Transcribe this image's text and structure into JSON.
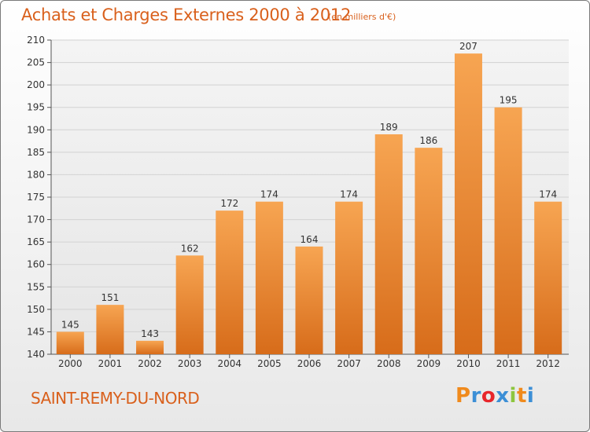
{
  "header": {
    "title": "Achats et Charges Externes 2000 à 2012",
    "subtitle": "(en milliers d'€)"
  },
  "footer": {
    "commune": "SAINT-REMY-DU-NORD",
    "brand": "Proxiti"
  },
  "colors": {
    "accent": "#d9601c",
    "bar_light": "#f7a552",
    "bar_dark": "#d76c1a",
    "logo_letters": [
      "#f08a1c",
      "#3c8fd6",
      "#e8262b",
      "#3c8fd6",
      "#8dc63f",
      "#f08a1c",
      "#3c8fd6"
    ]
  },
  "chart_data": {
    "type": "bar",
    "categories": [
      "2000",
      "2001",
      "2002",
      "2003",
      "2004",
      "2005",
      "2006",
      "2007",
      "2008",
      "2009",
      "2010",
      "2011",
      "2012"
    ],
    "values": [
      145,
      151,
      143,
      162,
      172,
      174,
      164,
      174,
      189,
      186,
      207,
      195,
      174
    ],
    "title": "Achats et Charges Externes 2000 à 2012",
    "xlabel": "",
    "ylabel": "",
    "ylim": [
      140,
      210
    ],
    "yticks": [
      140,
      145,
      150,
      155,
      160,
      165,
      170,
      175,
      180,
      185,
      190,
      195,
      200,
      205,
      210
    ],
    "grid": true,
    "data_labels": true
  }
}
